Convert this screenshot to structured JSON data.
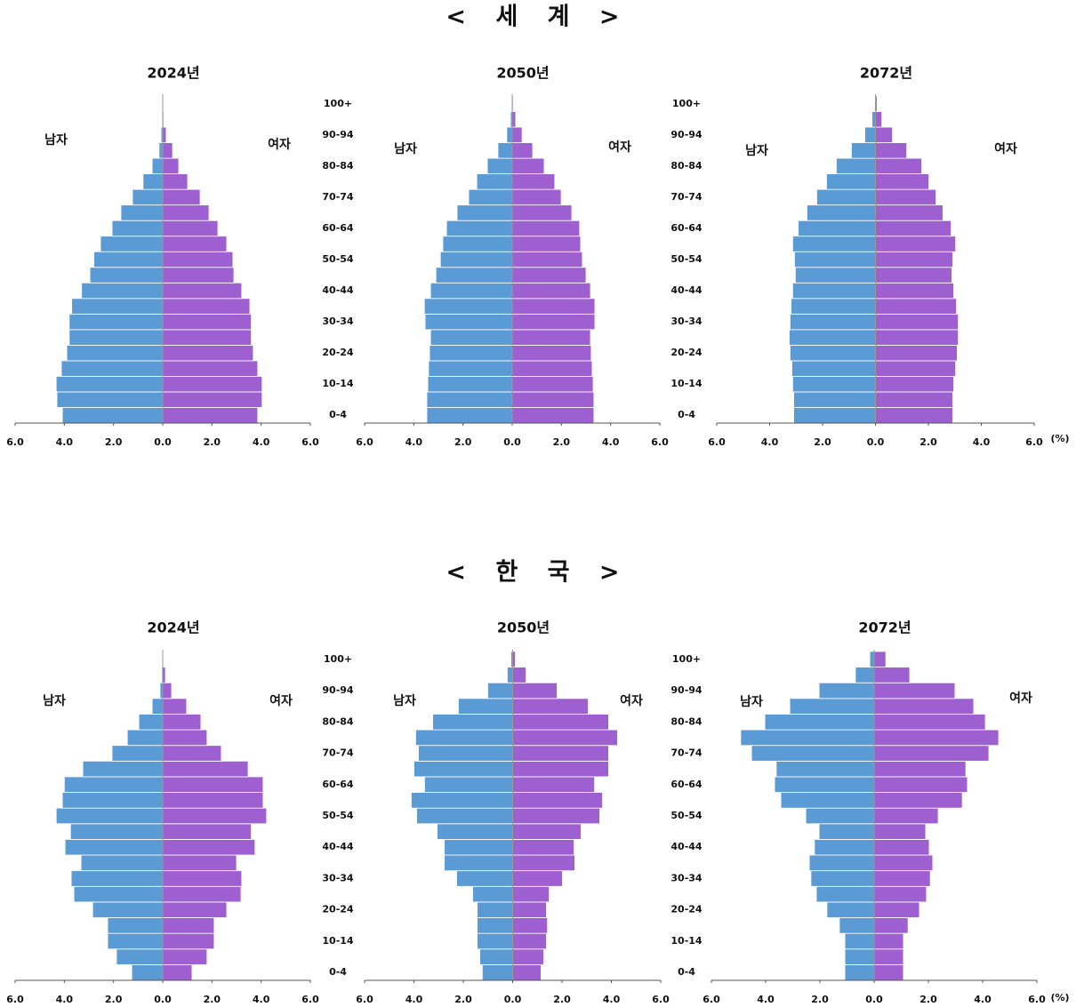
{
  "section_titles": [
    "< 세 계 >",
    "< 한 국 >"
  ],
  "age_groups": [
    "0-4",
    null,
    "10-14",
    null,
    "20-24",
    null,
    "30-34",
    null,
    "40-44",
    null,
    "50-54",
    null,
    "60-64",
    null,
    "70-74",
    null,
    "80-84",
    null,
    "90-94",
    null,
    "100+"
  ],
  "unit": "(%)",
  "chart_data": [
    {
      "type": "pyramid",
      "title": "2024년",
      "xlim": [
        0,
        6
      ],
      "xticks": [
        {
          "value": 0,
          "label": "0.0"
        },
        {
          "value": 2,
          "label": "2.0"
        },
        {
          "value": 4,
          "label": "4.0"
        },
        {
          "value": 6,
          "label": "6.0"
        }
      ],
      "series": [
        {
          "name": "남자",
          "color": "#5b9bd5",
          "values": [
            4.08,
            4.3,
            4.33,
            4.12,
            3.9,
            3.8,
            3.8,
            3.7,
            3.3,
            2.96,
            2.8,
            2.53,
            2.06,
            1.7,
            1.23,
            0.8,
            0.43,
            0.15,
            0.07,
            0.03,
            0.01
          ]
        },
        {
          "name": "여자",
          "color": "#9e5fd0",
          "values": [
            3.86,
            4.04,
            4.04,
            3.86,
            3.68,
            3.6,
            3.6,
            3.54,
            3.21,
            2.89,
            2.85,
            2.6,
            2.24,
            1.88,
            1.52,
            1.01,
            0.65,
            0.4,
            0.14,
            0.04,
            0.01
          ]
        }
      ]
    },
    {
      "type": "pyramid",
      "title": "2050년",
      "xlim": [
        0,
        6
      ],
      "xticks": [
        {
          "value": 0,
          "label": "0.0"
        },
        {
          "value": 2,
          "label": "2.0"
        },
        {
          "value": 4,
          "label": "4.0"
        },
        {
          "value": 6,
          "label": "6.0"
        }
      ],
      "series": [
        {
          "name": "남자",
          "color": "#5b9bd5",
          "values": [
            3.47,
            3.47,
            3.43,
            3.4,
            3.36,
            3.32,
            3.54,
            3.57,
            3.32,
            3.1,
            2.92,
            2.82,
            2.67,
            2.24,
            1.77,
            1.44,
            1.01,
            0.58,
            0.22,
            0.07,
            0.02
          ]
        },
        {
          "name": "여자",
          "color": "#9e5fd0",
          "values": [
            3.32,
            3.32,
            3.29,
            3.25,
            3.21,
            3.18,
            3.36,
            3.36,
            3.18,
            3.0,
            2.85,
            2.78,
            2.74,
            2.42,
            1.99,
            1.73,
            1.3,
            0.83,
            0.4,
            0.14,
            0.04
          ]
        }
      ]
    },
    {
      "type": "pyramid",
      "title": "2072년",
      "xlim": [
        0,
        6
      ],
      "xticks": [
        {
          "value": 0,
          "label": "0.0"
        },
        {
          "value": 2,
          "label": "2.0"
        },
        {
          "value": 4,
          "label": "4.0"
        },
        {
          "value": 6,
          "label": "6.0"
        }
      ],
      "series": [
        {
          "name": "남자",
          "color": "#5b9bd5",
          "values": [
            3.09,
            3.09,
            3.13,
            3.16,
            3.23,
            3.26,
            3.23,
            3.19,
            3.13,
            3.03,
            3.06,
            3.13,
            2.92,
            2.59,
            2.22,
            1.85,
            1.48,
            0.91,
            0.4,
            0.13,
            0.03
          ]
        },
        {
          "name": "여자",
          "color": "#9e5fd0",
          "values": [
            2.92,
            2.92,
            2.96,
            3.03,
            3.09,
            3.13,
            3.13,
            3.06,
            2.96,
            2.89,
            2.92,
            3.03,
            2.86,
            2.55,
            2.29,
            2.02,
            1.75,
            1.18,
            0.64,
            0.24,
            0.06
          ]
        }
      ]
    },
    {
      "type": "pyramid",
      "title": "2024년",
      "xlim": [
        0,
        6
      ],
      "xticks": [
        {
          "value": 0,
          "label": "0.0"
        },
        {
          "value": 2,
          "label": "2.0"
        },
        {
          "value": 4,
          "label": "4.0"
        },
        {
          "value": 6,
          "label": "6.0"
        }
      ],
      "series": [
        {
          "name": "남자",
          "color": "#5b9bd5",
          "values": [
            1.26,
            1.88,
            2.24,
            2.24,
            2.85,
            3.61,
            3.72,
            3.32,
            3.97,
            3.75,
            4.33,
            4.08,
            4.0,
            3.25,
            2.06,
            1.44,
            0.97,
            0.43,
            0.11,
            0.04,
            0.01
          ]
        },
        {
          "name": "여자",
          "color": "#9e5fd0",
          "values": [
            1.19,
            1.8,
            2.09,
            2.09,
            2.6,
            3.18,
            3.21,
            3.0,
            3.75,
            3.6,
            4.22,
            4.08,
            4.08,
            3.47,
            2.38,
            1.8,
            1.55,
            0.97,
            0.36,
            0.11,
            0.02
          ]
        }
      ]
    },
    {
      "type": "pyramid",
      "title": "2050년",
      "xlim": [
        0,
        6
      ],
      "xticks": [
        {
          "value": 0,
          "label": "0.0"
        },
        {
          "value": 2,
          "label": "2.0"
        },
        {
          "value": 4,
          "label": "4.0"
        },
        {
          "value": 6,
          "label": "6.0"
        }
      ],
      "series": [
        {
          "name": "남자",
          "color": "#5b9bd5",
          "values": [
            1.23,
            1.33,
            1.44,
            1.44,
            1.44,
            1.62,
            2.27,
            2.77,
            2.77,
            3.06,
            3.89,
            4.11,
            3.57,
            4.0,
            3.82,
            3.93,
            3.24,
            2.2,
            1.01,
            0.22,
            0.07
          ]
        },
        {
          "name": "여자",
          "color": "#9e5fd0",
          "values": [
            1.15,
            1.26,
            1.37,
            1.41,
            1.37,
            1.48,
            2.02,
            2.52,
            2.49,
            2.77,
            3.53,
            3.64,
            3.32,
            3.89,
            3.89,
            4.25,
            3.89,
            3.06,
            1.8,
            0.54,
            0.11
          ]
        }
      ]
    },
    {
      "type": "pyramid",
      "title": "2072년",
      "xlim": [
        0,
        6
      ],
      "xticks": [
        {
          "value": 0,
          "label": "0.0"
        },
        {
          "value": 2,
          "label": "2.0"
        },
        {
          "value": 4,
          "label": "4.0"
        },
        {
          "value": 6,
          "label": "6.0"
        }
      ],
      "series": [
        {
          "name": "남자",
          "color": "#5b9bd5",
          "values": [
            1.08,
            1.08,
            1.08,
            1.28,
            1.74,
            2.13,
            2.33,
            2.39,
            2.2,
            2.03,
            2.52,
            3.44,
            3.67,
            3.61,
            4.52,
            4.92,
            4.03,
            3.11,
            2.03,
            0.69,
            0.16
          ]
        },
        {
          "name": "여자",
          "color": "#9e5fd0",
          "values": [
            1.08,
            1.08,
            1.08,
            1.25,
            1.67,
            1.93,
            2.07,
            2.16,
            2.03,
            1.9,
            2.36,
            3.25,
            3.44,
            3.38,
            4.23,
            4.59,
            4.1,
            3.67,
            2.98,
            1.31,
            0.43
          ]
        }
      ]
    }
  ]
}
